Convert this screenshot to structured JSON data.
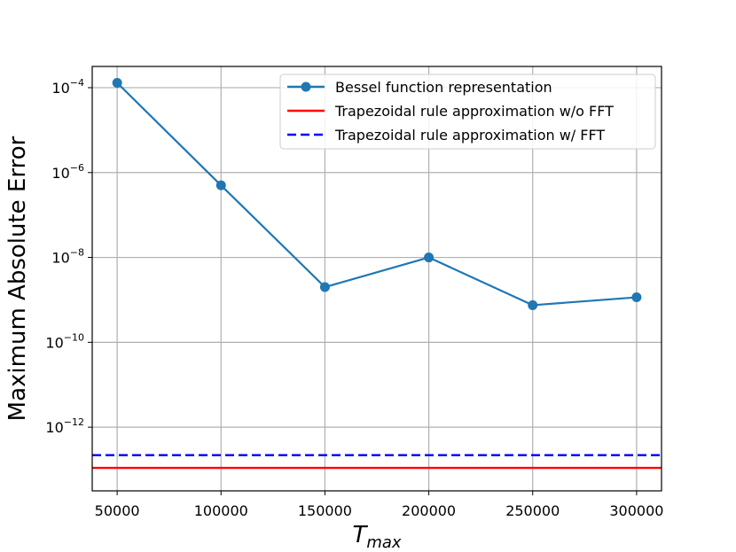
{
  "chart_data": {
    "type": "line",
    "xlabel_base": "T",
    "xlabel_sub": "max",
    "ylabel": "Maximum Absolute Error",
    "yscale": "log",
    "xlim": [
      38000,
      312000
    ],
    "ylim_exp": [
      -13.5,
      -3.5
    ],
    "grid": true,
    "legend_position": "top-right",
    "x_ticks": [
      {
        "value": 50000,
        "label": "50000"
      },
      {
        "value": 100000,
        "label": "100000"
      },
      {
        "value": 150000,
        "label": "150000"
      },
      {
        "value": 200000,
        "label": "200000"
      },
      {
        "value": 250000,
        "label": "250000"
      },
      {
        "value": 300000,
        "label": "300000"
      }
    ],
    "y_ticks": [
      {
        "exp": -4,
        "base": "10",
        "sup": "−4"
      },
      {
        "exp": -6,
        "base": "10",
        "sup": "−6"
      },
      {
        "exp": -8,
        "base": "10",
        "sup": "−8"
      },
      {
        "exp": -10,
        "base": "10",
        "sup": "−10"
      },
      {
        "exp": -12,
        "base": "10",
        "sup": "−12"
      }
    ],
    "series": [
      {
        "name": "Bessel function representation",
        "style": "line-marker",
        "color": "#1f77b4",
        "x": [
          50000,
          100000,
          150000,
          200000,
          250000,
          300000
        ],
        "y": [
          0.00013,
          5e-07,
          2e-09,
          1e-08,
          7.5e-10,
          1.15e-09
        ]
      },
      {
        "name": "Trapezoidal rule approximation w/o FFT",
        "style": "hline-solid",
        "color": "#ff0000",
        "y": 1.1e-13
      },
      {
        "name": "Trapezoidal rule approximation w/ FFT",
        "style": "hline-dashed",
        "color": "#0000ff",
        "y": 2.2e-13
      }
    ]
  }
}
